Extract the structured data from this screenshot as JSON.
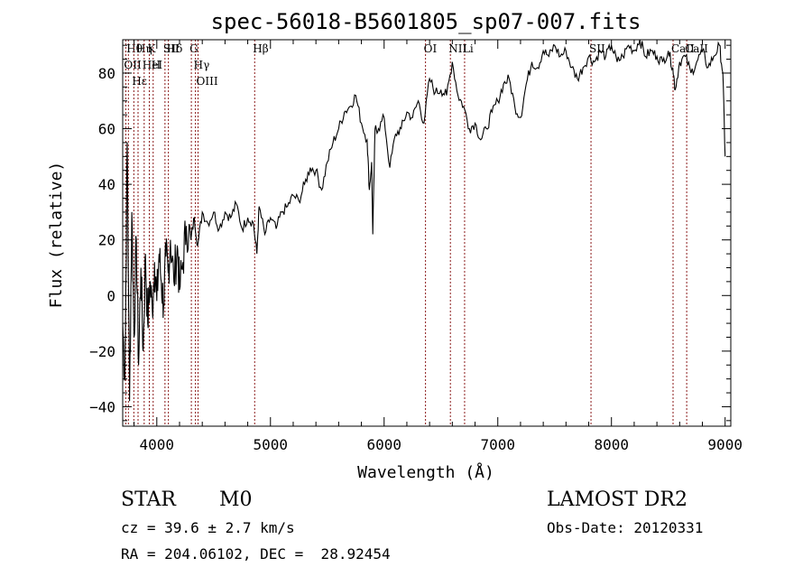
{
  "chart_data": {
    "type": "line",
    "title": "spec-56018-B5601805_sp07-007.fits",
    "xlabel": "Wavelength (Å)",
    "ylabel": "Flux (relative)",
    "xlim": [
      3700,
      9050
    ],
    "ylim": [
      -47,
      92
    ],
    "x_ticks": [
      4000,
      5000,
      6000,
      7000,
      8000,
      9000
    ],
    "y_ticks": [
      -40,
      -20,
      0,
      20,
      40,
      60,
      80
    ],
    "grid": false,
    "legend": "none",
    "line_color": "#000000",
    "marker_color": "#8b1a1a",
    "series": [
      {
        "x": [
          3700,
          3720,
          3740,
          3760,
          3780,
          3800,
          3820,
          3840,
          3860,
          3880,
          3900,
          3920,
          3940,
          3960,
          3980,
          4000,
          4020,
          4040,
          4060,
          4080,
          4100,
          4120,
          4150,
          4180,
          4200,
          4230,
          4260,
          4300,
          4330,
          4360,
          4400,
          4450,
          4500,
          4550,
          4600,
          4650,
          4700,
          4750,
          4800,
          4850,
          4880,
          4900,
          4950,
          5000,
          5050,
          5100,
          5150,
          5200,
          5250,
          5300,
          5350,
          5400,
          5450,
          5500,
          5550,
          5600,
          5650,
          5700,
          5750,
          5800,
          5850,
          5870,
          5890,
          5900,
          5920,
          5950,
          6000,
          6050,
          6100,
          6150,
          6200,
          6250,
          6300,
          6350,
          6400,
          6450,
          6500,
          6550,
          6600,
          6650,
          6700,
          6750,
          6800,
          6850,
          6900,
          6950,
          7000,
          7050,
          7100,
          7150,
          7200,
          7250,
          7300,
          7350,
          7400,
          7450,
          7500,
          7550,
          7600,
          7650,
          7700,
          7750,
          7800,
          7850,
          7900,
          7950,
          8000,
          8050,
          8100,
          8150,
          8200,
          8250,
          8300,
          8350,
          8400,
          8450,
          8500,
          8540,
          8560,
          8600,
          8650,
          8700,
          8750,
          8800,
          8850,
          8900,
          8950,
          8980,
          9000
        ],
        "y": [
          -10,
          -30,
          55,
          -38,
          30,
          -15,
          20,
          -25,
          10,
          -20,
          15,
          -10,
          5,
          -5,
          12,
          -2,
          15,
          5,
          -3,
          14,
          8,
          20,
          5,
          18,
          2,
          12,
          25,
          20,
          28,
          18,
          30,
          26,
          30,
          24,
          30,
          28,
          33,
          24,
          28,
          26,
          15,
          32,
          22,
          28,
          24,
          30,
          32,
          36,
          34,
          40,
          46,
          45,
          38,
          48,
          55,
          60,
          66,
          68,
          72,
          62,
          56,
          38,
          48,
          22,
          60,
          60,
          64,
          46,
          58,
          60,
          66,
          64,
          70,
          62,
          78,
          73,
          74,
          72,
          84,
          72,
          68,
          60,
          62,
          56,
          60,
          66,
          70,
          76,
          78,
          68,
          64,
          76,
          84,
          82,
          88,
          86,
          90,
          86,
          88,
          82,
          78,
          82,
          86,
          84,
          88,
          86,
          90,
          84,
          86,
          90,
          88,
          92,
          86,
          88,
          86,
          84,
          88,
          82,
          74,
          84,
          86,
          80,
          84,
          88,
          82,
          86,
          90,
          80,
          50
        ]
      }
    ],
    "markers": [
      {
        "x": 3750,
        "label": "Hθ"
      },
      {
        "x": 3727,
        "label": "OII"
      },
      {
        "x": 3798,
        "label": "Hε"
      },
      {
        "x": 3835,
        "label": "Hη"
      },
      {
        "x": 3889,
        "label": "HeI"
      },
      {
        "x": 3934,
        "label": "K"
      },
      {
        "x": 3968,
        "label": "H"
      },
      {
        "x": 4072,
        "label": "SII"
      },
      {
        "x": 4102,
        "label": "Hδ"
      },
      {
        "x": 4304,
        "label": "G"
      },
      {
        "x": 4340,
        "label": "Hγ"
      },
      {
        "x": 4363,
        "label": "OIII"
      },
      {
        "x": 4861,
        "label": "Hβ"
      },
      {
        "x": 6364,
        "label": "OI"
      },
      {
        "x": 6583,
        "label": "NII"
      },
      {
        "x": 6708,
        "label": "Li"
      },
      {
        "x": 7820,
        "label": "SII"
      },
      {
        "x": 8542,
        "label": "CaII"
      },
      {
        "x": 8662,
        "label": "CaII"
      }
    ]
  },
  "info": {
    "object_class": "STAR",
    "subclass": "M0",
    "survey": "LAMOST DR2",
    "cz": "cz = 39.6 ± 2.7 km/s",
    "obs_date": "Obs-Date: 20120331",
    "coords": "RA = 204.06102, DEC =  28.92454"
  }
}
